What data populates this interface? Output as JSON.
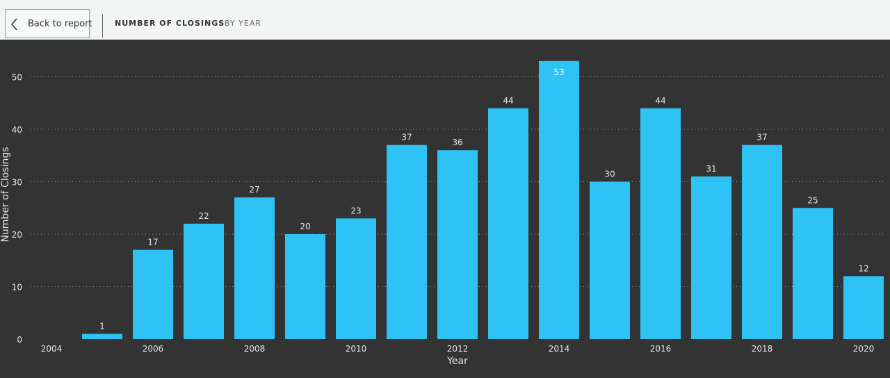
{
  "header": {
    "back_label": "Back to report",
    "title": "NUMBER OF CLOSINGS",
    "subtitle": "BY YEAR"
  },
  "colors": {
    "bar": "#2ec2f5",
    "background": "#333333",
    "text": "#e6e6e6",
    "grid": "#9a9a9a"
  },
  "chart_data": {
    "type": "bar",
    "title": "",
    "xlabel": "Year",
    "ylabel": "Number of Closings",
    "categories": [
      2005,
      2006,
      2007,
      2008,
      2009,
      2010,
      2011,
      2012,
      2013,
      2014,
      2015,
      2016,
      2017,
      2018,
      2019,
      2020
    ],
    "values": [
      1,
      17,
      22,
      27,
      20,
      23,
      37,
      36,
      44,
      53,
      30,
      44,
      31,
      37,
      25,
      12
    ],
    "xlim": [
      2004,
      2020
    ],
    "xticks": [
      2004,
      2006,
      2008,
      2010,
      2012,
      2014,
      2016,
      2018,
      2020
    ],
    "ylim": [
      0,
      53
    ],
    "yticks": [
      0,
      10,
      20,
      30,
      40,
      50
    ],
    "grid": true,
    "data_labels": true
  }
}
